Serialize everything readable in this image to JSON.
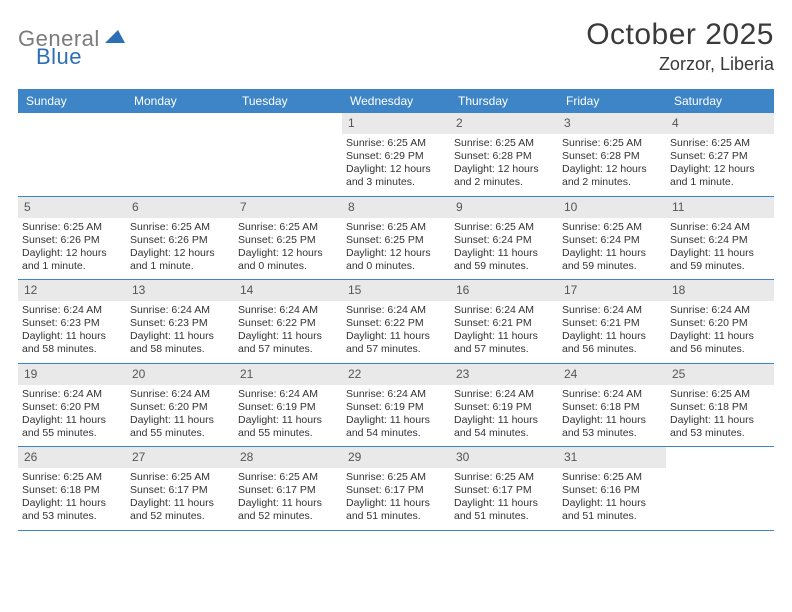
{
  "brand": {
    "word1": "General",
    "word2": "Blue",
    "gray_color": "#7b7b7b",
    "blue_color": "#2d6fb5",
    "mark_color": "#2d6fb5"
  },
  "title": "October 2025",
  "location": "Zorzor, Liberia",
  "colors": {
    "header_bg": "#3d85c6",
    "header_fg": "#ffffff",
    "daynum_bg": "#e9e9e9",
    "rule": "#3d85c6",
    "text": "#333333",
    "page_bg": "#ffffff"
  },
  "typography": {
    "title_fontsize": 30,
    "location_fontsize": 18,
    "dow_fontsize": 12,
    "daynum_fontsize": 12,
    "body_fontsize": 10.5
  },
  "dow": [
    "Sunday",
    "Monday",
    "Tuesday",
    "Wednesday",
    "Thursday",
    "Friday",
    "Saturday"
  ],
  "weeks": [
    [
      {
        "n": "",
        "sr": "",
        "ss": "",
        "dl1": "",
        "dl2": ""
      },
      {
        "n": "",
        "sr": "",
        "ss": "",
        "dl1": "",
        "dl2": ""
      },
      {
        "n": "",
        "sr": "",
        "ss": "",
        "dl1": "",
        "dl2": ""
      },
      {
        "n": "1",
        "sr": "Sunrise: 6:25 AM",
        "ss": "Sunset: 6:29 PM",
        "dl1": "Daylight: 12 hours",
        "dl2": "and 3 minutes."
      },
      {
        "n": "2",
        "sr": "Sunrise: 6:25 AM",
        "ss": "Sunset: 6:28 PM",
        "dl1": "Daylight: 12 hours",
        "dl2": "and 2 minutes."
      },
      {
        "n": "3",
        "sr": "Sunrise: 6:25 AM",
        "ss": "Sunset: 6:28 PM",
        "dl1": "Daylight: 12 hours",
        "dl2": "and 2 minutes."
      },
      {
        "n": "4",
        "sr": "Sunrise: 6:25 AM",
        "ss": "Sunset: 6:27 PM",
        "dl1": "Daylight: 12 hours",
        "dl2": "and 1 minute."
      }
    ],
    [
      {
        "n": "5",
        "sr": "Sunrise: 6:25 AM",
        "ss": "Sunset: 6:26 PM",
        "dl1": "Daylight: 12 hours",
        "dl2": "and 1 minute."
      },
      {
        "n": "6",
        "sr": "Sunrise: 6:25 AM",
        "ss": "Sunset: 6:26 PM",
        "dl1": "Daylight: 12 hours",
        "dl2": "and 1 minute."
      },
      {
        "n": "7",
        "sr": "Sunrise: 6:25 AM",
        "ss": "Sunset: 6:25 PM",
        "dl1": "Daylight: 12 hours",
        "dl2": "and 0 minutes."
      },
      {
        "n": "8",
        "sr": "Sunrise: 6:25 AM",
        "ss": "Sunset: 6:25 PM",
        "dl1": "Daylight: 12 hours",
        "dl2": "and 0 minutes."
      },
      {
        "n": "9",
        "sr": "Sunrise: 6:25 AM",
        "ss": "Sunset: 6:24 PM",
        "dl1": "Daylight: 11 hours",
        "dl2": "and 59 minutes."
      },
      {
        "n": "10",
        "sr": "Sunrise: 6:25 AM",
        "ss": "Sunset: 6:24 PM",
        "dl1": "Daylight: 11 hours",
        "dl2": "and 59 minutes."
      },
      {
        "n": "11",
        "sr": "Sunrise: 6:24 AM",
        "ss": "Sunset: 6:24 PM",
        "dl1": "Daylight: 11 hours",
        "dl2": "and 59 minutes."
      }
    ],
    [
      {
        "n": "12",
        "sr": "Sunrise: 6:24 AM",
        "ss": "Sunset: 6:23 PM",
        "dl1": "Daylight: 11 hours",
        "dl2": "and 58 minutes."
      },
      {
        "n": "13",
        "sr": "Sunrise: 6:24 AM",
        "ss": "Sunset: 6:23 PM",
        "dl1": "Daylight: 11 hours",
        "dl2": "and 58 minutes."
      },
      {
        "n": "14",
        "sr": "Sunrise: 6:24 AM",
        "ss": "Sunset: 6:22 PM",
        "dl1": "Daylight: 11 hours",
        "dl2": "and 57 minutes."
      },
      {
        "n": "15",
        "sr": "Sunrise: 6:24 AM",
        "ss": "Sunset: 6:22 PM",
        "dl1": "Daylight: 11 hours",
        "dl2": "and 57 minutes."
      },
      {
        "n": "16",
        "sr": "Sunrise: 6:24 AM",
        "ss": "Sunset: 6:21 PM",
        "dl1": "Daylight: 11 hours",
        "dl2": "and 57 minutes."
      },
      {
        "n": "17",
        "sr": "Sunrise: 6:24 AM",
        "ss": "Sunset: 6:21 PM",
        "dl1": "Daylight: 11 hours",
        "dl2": "and 56 minutes."
      },
      {
        "n": "18",
        "sr": "Sunrise: 6:24 AM",
        "ss": "Sunset: 6:20 PM",
        "dl1": "Daylight: 11 hours",
        "dl2": "and 56 minutes."
      }
    ],
    [
      {
        "n": "19",
        "sr": "Sunrise: 6:24 AM",
        "ss": "Sunset: 6:20 PM",
        "dl1": "Daylight: 11 hours",
        "dl2": "and 55 minutes."
      },
      {
        "n": "20",
        "sr": "Sunrise: 6:24 AM",
        "ss": "Sunset: 6:20 PM",
        "dl1": "Daylight: 11 hours",
        "dl2": "and 55 minutes."
      },
      {
        "n": "21",
        "sr": "Sunrise: 6:24 AM",
        "ss": "Sunset: 6:19 PM",
        "dl1": "Daylight: 11 hours",
        "dl2": "and 55 minutes."
      },
      {
        "n": "22",
        "sr": "Sunrise: 6:24 AM",
        "ss": "Sunset: 6:19 PM",
        "dl1": "Daylight: 11 hours",
        "dl2": "and 54 minutes."
      },
      {
        "n": "23",
        "sr": "Sunrise: 6:24 AM",
        "ss": "Sunset: 6:19 PM",
        "dl1": "Daylight: 11 hours",
        "dl2": "and 54 minutes."
      },
      {
        "n": "24",
        "sr": "Sunrise: 6:24 AM",
        "ss": "Sunset: 6:18 PM",
        "dl1": "Daylight: 11 hours",
        "dl2": "and 53 minutes."
      },
      {
        "n": "25",
        "sr": "Sunrise: 6:25 AM",
        "ss": "Sunset: 6:18 PM",
        "dl1": "Daylight: 11 hours",
        "dl2": "and 53 minutes."
      }
    ],
    [
      {
        "n": "26",
        "sr": "Sunrise: 6:25 AM",
        "ss": "Sunset: 6:18 PM",
        "dl1": "Daylight: 11 hours",
        "dl2": "and 53 minutes."
      },
      {
        "n": "27",
        "sr": "Sunrise: 6:25 AM",
        "ss": "Sunset: 6:17 PM",
        "dl1": "Daylight: 11 hours",
        "dl2": "and 52 minutes."
      },
      {
        "n": "28",
        "sr": "Sunrise: 6:25 AM",
        "ss": "Sunset: 6:17 PM",
        "dl1": "Daylight: 11 hours",
        "dl2": "and 52 minutes."
      },
      {
        "n": "29",
        "sr": "Sunrise: 6:25 AM",
        "ss": "Sunset: 6:17 PM",
        "dl1": "Daylight: 11 hours",
        "dl2": "and 51 minutes."
      },
      {
        "n": "30",
        "sr": "Sunrise: 6:25 AM",
        "ss": "Sunset: 6:17 PM",
        "dl1": "Daylight: 11 hours",
        "dl2": "and 51 minutes."
      },
      {
        "n": "31",
        "sr": "Sunrise: 6:25 AM",
        "ss": "Sunset: 6:16 PM",
        "dl1": "Daylight: 11 hours",
        "dl2": "and 51 minutes."
      },
      {
        "n": "",
        "sr": "",
        "ss": "",
        "dl1": "",
        "dl2": ""
      }
    ]
  ]
}
